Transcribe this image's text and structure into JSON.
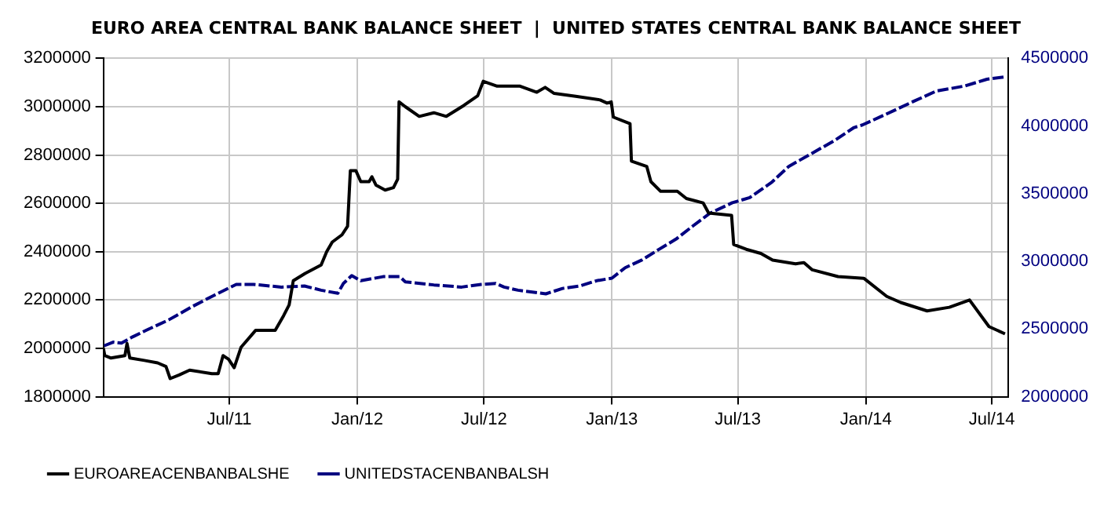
{
  "chart_data": {
    "type": "line",
    "title": "EURO AREA CENTRAL BANK BALANCE SHEET  |  UNITED STATES CENTRAL BANK BALANCE SHEET",
    "marker": "none",
    "grid": true,
    "legend": "bottom left",
    "xlim": [
      "2011-01-01",
      "2014-07-25"
    ],
    "xticks": [
      {
        "value": "2011-07-01",
        "label": "Jul/11"
      },
      {
        "value": "2012-01-01",
        "label": "Jan/12"
      },
      {
        "value": "2012-07-01",
        "label": "Jul/12"
      },
      {
        "value": "2013-01-01",
        "label": "Jan/13"
      },
      {
        "value": "2013-07-01",
        "label": "Jul/13"
      },
      {
        "value": "2014-01-01",
        "label": "Jan/14"
      },
      {
        "value": "2014-07-01",
        "label": "Jul/14"
      }
    ],
    "ylim": [
      1800000,
      3200000
    ],
    "yticks": [
      1800000,
      2000000,
      2200000,
      2400000,
      2600000,
      2800000,
      3000000,
      3200000
    ],
    "y2lim": [
      2000000,
      4500000
    ],
    "y2ticks": [
      2000000,
      2500000,
      3000000,
      3500000,
      4000000,
      4500000
    ],
    "series": [
      {
        "name": "EUROAREACENBANBALSHE",
        "color": "#000000",
        "line_style": "solid",
        "x": [
          "2011-01-01",
          "2011-01-03",
          "2011-01-12",
          "2011-02-01",
          "2011-02-04",
          "2011-02-08",
          "2011-03-01",
          "2011-03-20",
          "2011-04-01",
          "2011-04-07",
          "2011-04-20",
          "2011-05-05",
          "2011-06-06",
          "2011-06-15",
          "2011-06-22",
          "2011-06-30",
          "2011-07-08",
          "2011-07-18",
          "2011-08-08",
          "2011-09-05",
          "2011-09-17",
          "2011-09-25",
          "2011-10-01",
          "2011-10-18",
          "2011-11-10",
          "2011-11-18",
          "2011-11-26",
          "2011-12-10",
          "2011-12-18",
          "2011-12-22",
          "2011-12-30",
          "2012-01-06",
          "2012-01-18",
          "2012-01-22",
          "2012-01-28",
          "2012-02-10",
          "2012-02-22",
          "2012-02-28",
          "2012-03-01",
          "2012-03-10",
          "2012-03-30",
          "2012-04-20",
          "2012-05-08",
          "2012-06-02",
          "2012-06-22",
          "2012-06-30",
          "2012-07-20",
          "2012-08-22",
          "2012-09-15",
          "2012-09-27",
          "2012-10-10",
          "2012-11-10",
          "2012-12-15",
          "2012-12-25",
          "2012-12-31",
          "2013-01-03",
          "2013-01-27",
          "2013-01-29",
          "2013-02-20",
          "2013-02-26",
          "2013-03-12",
          "2013-04-05",
          "2013-04-18",
          "2013-05-12",
          "2013-05-20",
          "2013-06-22",
          "2013-06-25",
          "2013-07-13",
          "2013-08-03",
          "2013-08-20",
          "2013-09-22",
          "2013-10-04",
          "2013-10-16",
          "2013-11-22",
          "2013-12-29",
          "2014-01-31",
          "2014-02-20",
          "2014-03-30",
          "2014-05-01",
          "2014-05-30",
          "2014-06-27",
          "2014-07-20"
        ],
        "values": [
          2000000,
          1970000,
          1960000,
          1970000,
          2020000,
          1960000,
          1950000,
          1940000,
          1925000,
          1875000,
          1890000,
          1910000,
          1895000,
          1895000,
          1970000,
          1955000,
          1920000,
          2005000,
          2075000,
          2075000,
          2135000,
          2180000,
          2280000,
          2310000,
          2345000,
          2400000,
          2440000,
          2470000,
          2505000,
          2735000,
          2735000,
          2690000,
          2690000,
          2710000,
          2675000,
          2655000,
          2665000,
          2700000,
          3020000,
          3000000,
          2960000,
          2975000,
          2960000,
          3005000,
          3045000,
          3105000,
          3085000,
          3085000,
          3060000,
          3080000,
          3055000,
          3043000,
          3028000,
          3015000,
          3020000,
          2957000,
          2930000,
          2775000,
          2753000,
          2690000,
          2650000,
          2650000,
          2620000,
          2602000,
          2560000,
          2550000,
          2430000,
          2410000,
          2393000,
          2365000,
          2350000,
          2355000,
          2325000,
          2297000,
          2290000,
          2215000,
          2190000,
          2155000,
          2170000,
          2200000,
          2090000,
          2060000
        ]
      },
      {
        "name": "UNITEDSTACENBANBALSH",
        "color": "#000080",
        "line_style": "dashed",
        "axis": "y2",
        "x": [
          "2011-01-02",
          "2011-01-15",
          "2011-01-27",
          "2011-02-12",
          "2011-03-04",
          "2011-04-05",
          "2011-05-08",
          "2011-06-09",
          "2011-07-11",
          "2011-08-05",
          "2011-09-14",
          "2011-10-17",
          "2011-11-10",
          "2011-12-04",
          "2011-12-12",
          "2011-12-24",
          "2012-01-06",
          "2012-02-07",
          "2012-03-02",
          "2012-03-10",
          "2012-04-20",
          "2012-05-30",
          "2012-06-27",
          "2012-07-18",
          "2012-07-30",
          "2012-08-19",
          "2012-09-28",
          "2012-10-22",
          "2012-11-16",
          "2012-12-10",
          "2013-01-01",
          "2013-01-20",
          "2013-02-13",
          "2013-03-09",
          "2013-04-03",
          "2013-04-27",
          "2013-05-22",
          "2013-06-23",
          "2013-07-18",
          "2013-08-19",
          "2013-09-12",
          "2013-10-15",
          "2013-11-17",
          "2013-12-15",
          "2013-12-27",
          "2014-01-29",
          "2014-03-10",
          "2014-04-12",
          "2014-05-23",
          "2014-06-24",
          "2014-07-18"
        ],
        "values": [
          2376000,
          2403000,
          2396000,
          2442000,
          2492000,
          2568000,
          2664000,
          2749000,
          2830000,
          2830000,
          2810000,
          2818000,
          2787000,
          2764000,
          2837000,
          2895000,
          2857000,
          2887000,
          2887000,
          2849000,
          2826000,
          2810000,
          2830000,
          2837000,
          2810000,
          2787000,
          2760000,
          2800000,
          2818000,
          2857000,
          2876000,
          2953000,
          3010000,
          3087000,
          3164000,
          3260000,
          3356000,
          3433000,
          3471000,
          3586000,
          3701000,
          3797000,
          3893000,
          3989000,
          4008000,
          4085000,
          4181000,
          4258000,
          4296000,
          4346000,
          4362000
        ]
      }
    ]
  }
}
